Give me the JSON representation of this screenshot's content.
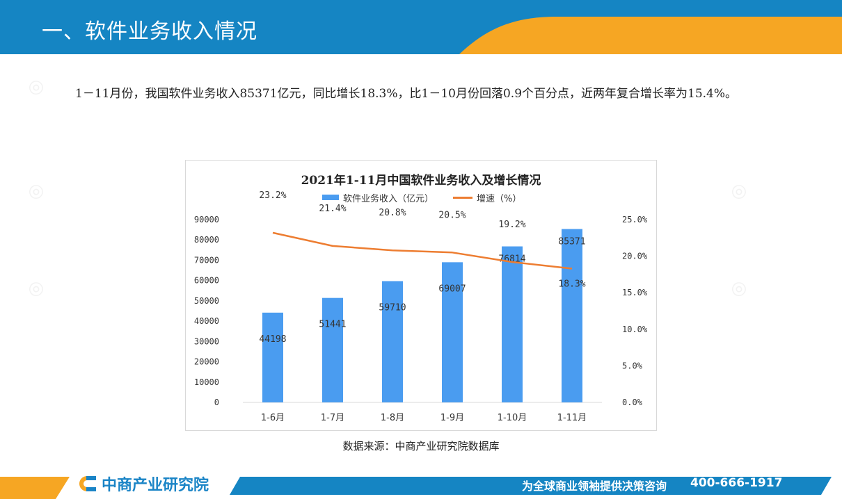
{
  "header": {
    "title": "一、软件业务收入情况"
  },
  "intro": {
    "text": "1－11月份，我国软件业务收入85371亿元，同比增长18.3%，比1－10月份回落0.9个百分点，近两年复合增长率为15.4%。"
  },
  "chart_data": {
    "type": "bar",
    "title": "2021年1-11月中国软件业务收入及增长情况",
    "categories": [
      "1-6月",
      "1-7月",
      "1-8月",
      "1-9月",
      "1-10月",
      "1-11月"
    ],
    "series": [
      {
        "name": "软件业务收入（亿元）",
        "type": "bar",
        "axis": "left",
        "color": "#4a9cf0",
        "values": [
          44198,
          51441,
          59710,
          69007,
          76814,
          85371
        ]
      },
      {
        "name": "增速（%）",
        "type": "line",
        "axis": "right",
        "color": "#ed7d31",
        "values": [
          23.2,
          21.4,
          20.8,
          20.5,
          19.2,
          18.3
        ],
        "labels": [
          "23.2%",
          "21.4%",
          "20.8%",
          "20.5%",
          "19.2%",
          "18.3%"
        ]
      }
    ],
    "left_axis": {
      "ylim": [
        0,
        90000
      ],
      "ticks": [
        "0",
        "10000",
        "20000",
        "30000",
        "40000",
        "50000",
        "60000",
        "70000",
        "80000",
        "90000"
      ]
    },
    "right_axis": {
      "ylim": [
        0,
        25
      ],
      "ticks": [
        "0.0%",
        "5.0%",
        "10.0%",
        "15.0%",
        "20.0%",
        "25.0%"
      ]
    },
    "legend": "top",
    "grid": false
  },
  "source": {
    "text": "数据来源：中商产业研究院数据库"
  },
  "footer": {
    "brand": "中商产业研究院",
    "slogan": "为全球商业领袖提供决策咨询",
    "phone": "400-666-1917"
  },
  "colors": {
    "header_blue": "#1585c3",
    "header_orange": "#f6a623",
    "bar": "#4a9cf0",
    "line": "#ed7d31",
    "brand_blue": "#1a84c6"
  },
  "icons": {
    "logo": "brand-logo-icon"
  }
}
